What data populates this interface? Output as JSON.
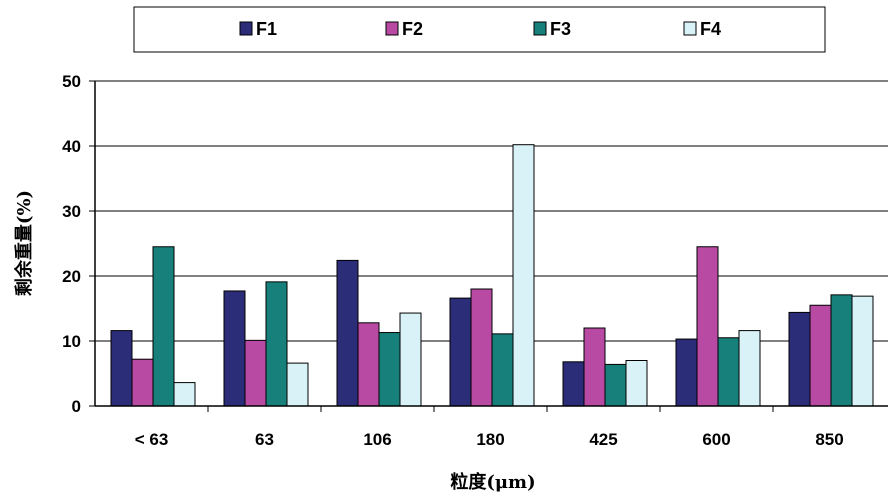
{
  "chart_data": {
    "type": "bar",
    "title": "",
    "xlabel": "粒度(μm)",
    "ylabel": "剩余重量(%)",
    "categories": [
      "< 63",
      "63",
      "106",
      "180",
      "425",
      "600",
      "850"
    ],
    "ylim": [
      0,
      50
    ],
    "yticks": [
      0,
      10,
      20,
      30,
      40,
      50
    ],
    "grid": true,
    "legend": "top",
    "series": [
      {
        "name": "F1",
        "color": "#2b2d78",
        "values": [
          11.6,
          17.7,
          22.4,
          16.6,
          6.8,
          10.3,
          14.4
        ]
      },
      {
        "name": "F2",
        "color": "#b94aa3",
        "values": [
          7.2,
          10.1,
          12.8,
          18.0,
          12.0,
          24.5,
          15.5
        ]
      },
      {
        "name": "F3",
        "color": "#17807a",
        "values": [
          24.5,
          19.1,
          11.3,
          11.1,
          6.4,
          10.5,
          17.1
        ]
      },
      {
        "name": "F4",
        "color": "#d8f2f7",
        "values": [
          3.6,
          6.6,
          14.3,
          40.2,
          7.0,
          11.6,
          16.9
        ]
      }
    ]
  }
}
